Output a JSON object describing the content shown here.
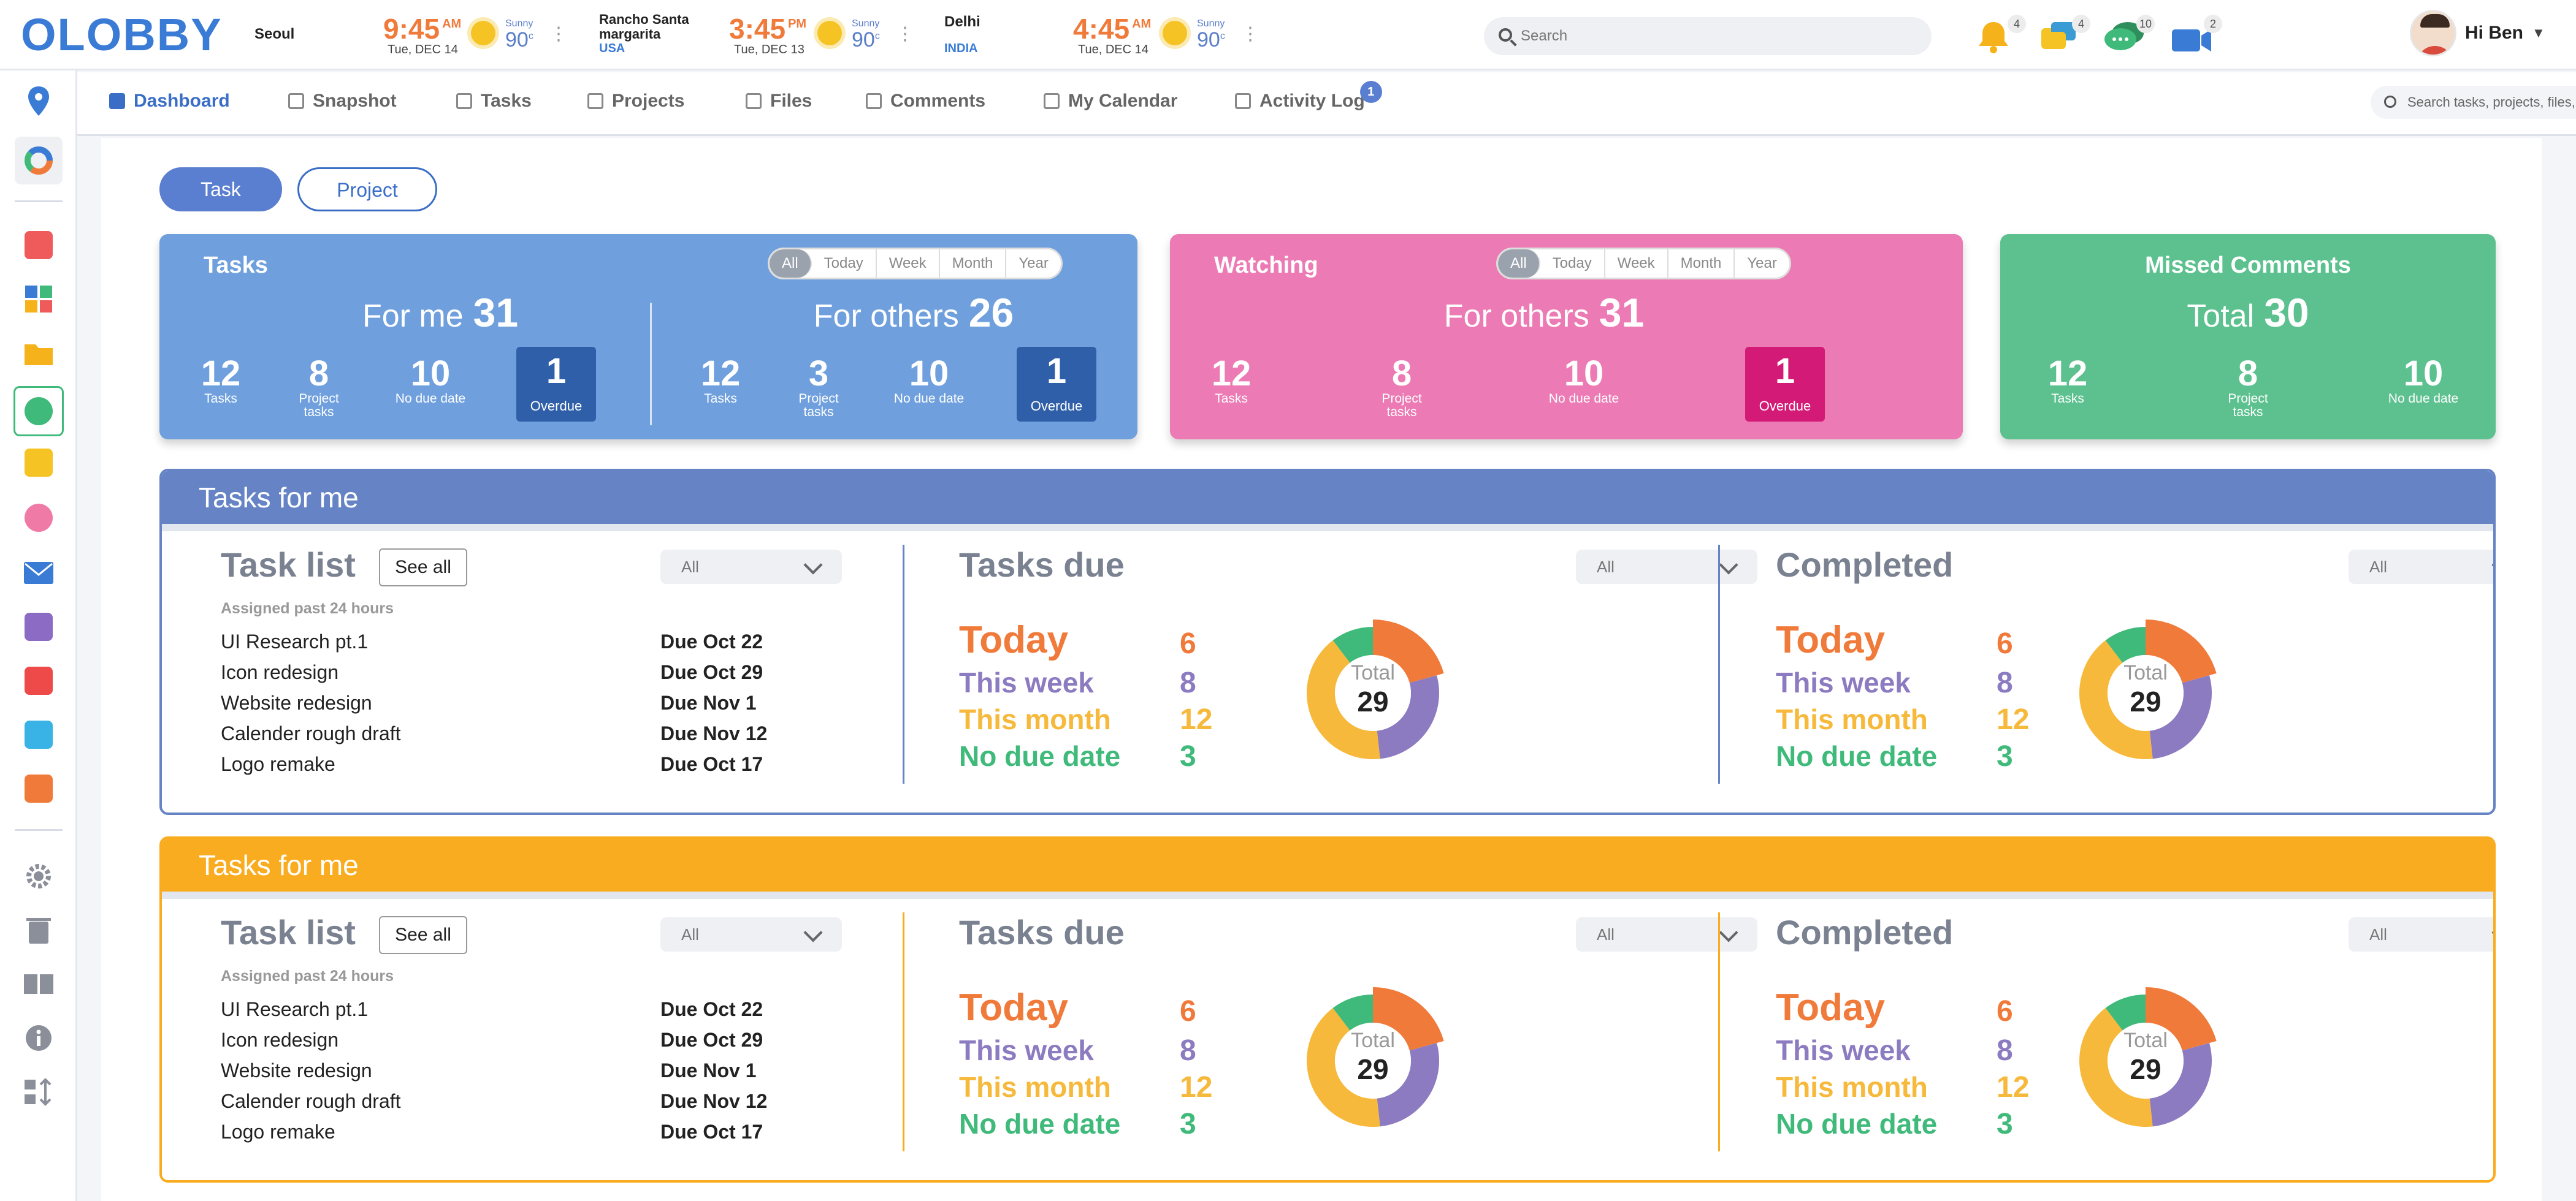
{
  "app": {
    "logo": "OLOBBY"
  },
  "clocks": [
    {
      "city": "Seoul",
      "time": "9:45",
      "ampm": "AM",
      "date": "Tue, DEC 14",
      "weather": "Sunny",
      "temp": "90",
      "unit": "c",
      "sub": ""
    },
    {
      "city": "Rancho Santa margarita",
      "time": "3:45",
      "ampm": "PM",
      "date": "Tue, DEC 13",
      "weather": "Sunny",
      "temp": "90",
      "unit": "c",
      "sub": "USA"
    },
    {
      "city": "Delhi",
      "time": "4:45",
      "ampm": "AM",
      "date": "Tue, DEC 14",
      "weather": "Sunny",
      "temp": "90",
      "unit": "c",
      "sub": "INDIA"
    }
  ],
  "topbar": {
    "search_placeholder": "Search",
    "notifications": [
      {
        "icon": "bell-icon",
        "count": "4",
        "color": "#f6b21b"
      },
      {
        "icon": "chat-bubbles-icon",
        "count": "4",
        "color": "#f6c324"
      },
      {
        "icon": "message-icon",
        "count": "10",
        "color": "#3aa76d"
      },
      {
        "icon": "video-icon",
        "count": "2",
        "color": "#3a7bd5"
      }
    ],
    "user_greeting": "Hi Ben"
  },
  "nav": {
    "tabs": [
      {
        "label": "Dashboard",
        "icon": "grid-icon",
        "active": true
      },
      {
        "label": "Snapshot",
        "icon": "camera-icon"
      },
      {
        "label": "Tasks",
        "icon": "list-icon"
      },
      {
        "label": "Projects",
        "icon": "clipboard-icon"
      },
      {
        "label": "Files",
        "icon": "file-icon"
      },
      {
        "label": "Comments",
        "icon": "comment-icon"
      },
      {
        "label": "My Calendar",
        "icon": "calendar-icon"
      },
      {
        "label": "Activity Log",
        "icon": "activity-icon",
        "badge": "1"
      }
    ],
    "search_placeholder": "Search tasks, projects, files, etc"
  },
  "sidebar": {
    "icons": [
      "location-icon",
      "dashboard-icon",
      "calendar-icon",
      "apps-icon",
      "folder-icon",
      "tasks-icon",
      "notes-icon",
      "timer-icon",
      "mail-icon",
      "share-icon",
      "pdf-icon",
      "clock-icon",
      "currency-icon",
      "settings-icon",
      "trash-icon",
      "book-icon",
      "info-icon",
      "sort-icon"
    ]
  },
  "toggle": {
    "task": "Task",
    "project": "Project"
  },
  "filters": [
    "All",
    "Today",
    "Week",
    "Month",
    "Year"
  ],
  "cards": {
    "tasks": {
      "title": "Tasks",
      "for_me": {
        "label": "For me",
        "total": "31",
        "stats": [
          {
            "v": "12",
            "l": "Tasks"
          },
          {
            "v": "8",
            "l": "Project tasks"
          },
          {
            "v": "10",
            "l": "No due date"
          }
        ],
        "overdue": {
          "v": "1",
          "l": "Overdue"
        }
      },
      "for_others": {
        "label": "For others",
        "total": "26",
        "stats": [
          {
            "v": "12",
            "l": "Tasks"
          },
          {
            "v": "3",
            "l": "Project tasks"
          },
          {
            "v": "10",
            "l": "No due date"
          }
        ],
        "overdue": {
          "v": "1",
          "l": "Overdue"
        }
      }
    },
    "watching": {
      "title": "Watching",
      "for_others": {
        "label": "For others",
        "total": "31",
        "stats": [
          {
            "v": "12",
            "l": "Tasks"
          },
          {
            "v": "8",
            "l": "Project tasks"
          },
          {
            "v": "10",
            "l": "No due date"
          }
        ],
        "overdue": {
          "v": "1",
          "l": "Overdue"
        }
      }
    },
    "missed": {
      "title": "Missed Comments",
      "total_label": "Total",
      "total": "30",
      "stats": [
        {
          "v": "12",
          "l": "Tasks"
        },
        {
          "v": "8",
          "l": "Project tasks"
        },
        {
          "v": "10",
          "l": "No due date"
        }
      ]
    }
  },
  "panels": [
    {
      "title": "Tasks for me",
      "color": "#6684c5",
      "tasklist": {
        "title": "Task list",
        "see_all": "See all",
        "filter": "All",
        "subtitle": "Assigned past 24 hours",
        "items": [
          {
            "name": "UI Research pt.1",
            "due": "Due Oct 22"
          },
          {
            "name": "Icon redesign",
            "due": "Due Oct 29"
          },
          {
            "name": "Website redesign",
            "due": "Due Nov 1"
          },
          {
            "name": "Calender rough draft",
            "due": "Due Nov 12"
          },
          {
            "name": "Logo remake",
            "due": "Due Oct 17"
          }
        ]
      },
      "due": {
        "title": "Tasks due",
        "filter": "All",
        "total_label": "Total",
        "total": "29"
      },
      "completed": {
        "title": "Completed",
        "filter": "All",
        "total_label": "Total",
        "total": "29"
      }
    },
    {
      "title": "Tasks for me",
      "color": "#f9ac1f",
      "tasklist": {
        "title": "Task list",
        "see_all": "See all",
        "filter": "All",
        "subtitle": "Assigned past 24 hours",
        "items": [
          {
            "name": "UI Research pt.1",
            "due": "Due Oct 22"
          },
          {
            "name": "Icon redesign",
            "due": "Due Oct 29"
          },
          {
            "name": "Website redesign",
            "due": "Due Nov 1"
          },
          {
            "name": "Calender rough draft",
            "due": "Due Nov 12"
          },
          {
            "name": "Logo remake",
            "due": "Due Oct 17"
          }
        ]
      },
      "due": {
        "title": "Tasks due",
        "filter": "All",
        "total_label": "Total",
        "total": "29"
      },
      "completed": {
        "title": "Completed",
        "filter": "All",
        "total_label": "Total",
        "total": "29"
      }
    }
  ],
  "chart_data": [
    {
      "type": "pie",
      "title": "Tasks due",
      "categories": [
        "Today",
        "This week",
        "This month",
        "No due date"
      ],
      "values": [
        6,
        8,
        12,
        3
      ],
      "colors": [
        "#f07a3a",
        "#8c7bc0",
        "#f6b93b",
        "#3fba7a"
      ]
    },
    {
      "type": "pie",
      "title": "Completed",
      "categories": [
        "Today",
        "This week",
        "This month",
        "No due date"
      ],
      "values": [
        6,
        8,
        12,
        3
      ],
      "colors": [
        "#f07a3a",
        "#8c7bc0",
        "#f6b93b",
        "#3fba7a"
      ]
    }
  ]
}
